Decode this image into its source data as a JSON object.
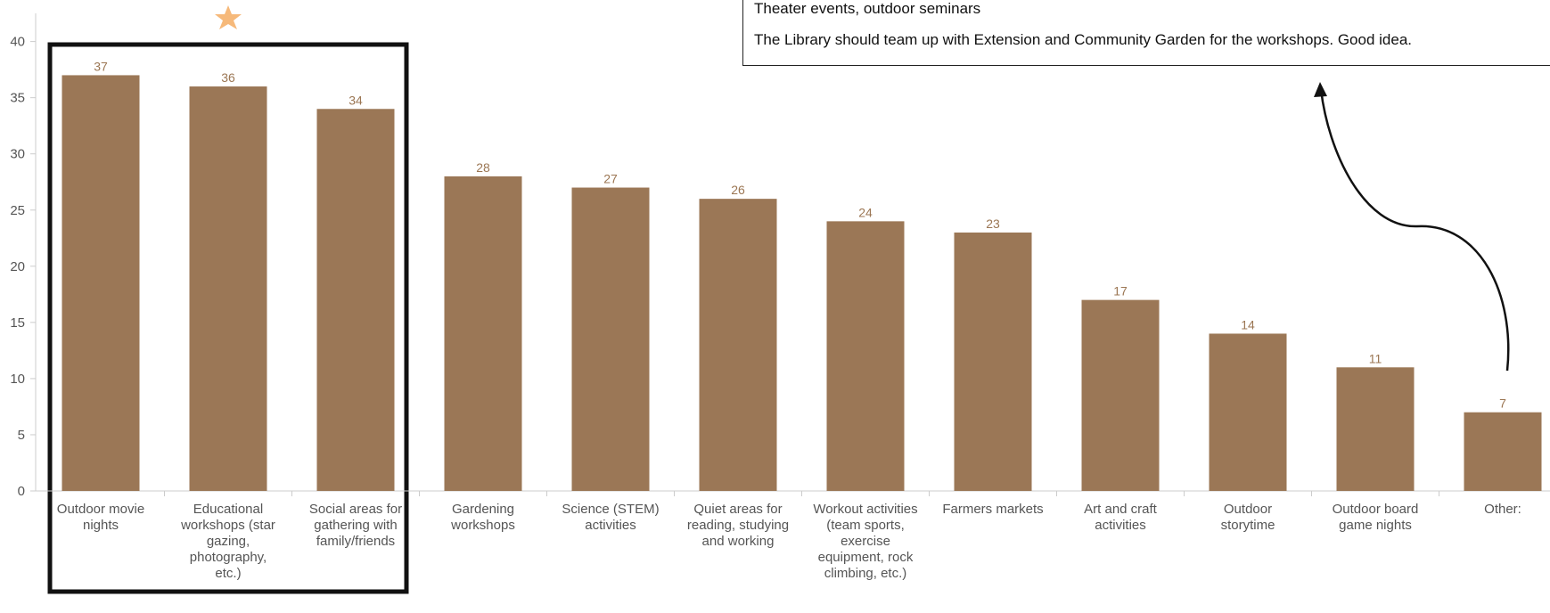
{
  "chart_data": {
    "type": "bar",
    "categories": [
      "Outdoor movie nights",
      "Educational workshops (star gazing, photography, etc.)",
      "Social areas for gathering with family/friends",
      "Gardening workshops",
      "Science (STEM) activities",
      "Quiet areas for reading, studying and working",
      "Workout activities (team sports, exercise equipment, rock climbing, etc.)",
      "Farmers markets",
      "Art and craft activities",
      "Outdoor storytime",
      "Outdoor board game nights",
      "Other:"
    ],
    "values": [
      37,
      36,
      34,
      28,
      27,
      26,
      24,
      23,
      17,
      14,
      11,
      7
    ],
    "color": "#9b7756",
    "ylim": [
      0,
      40
    ],
    "yticks": [
      0,
      5,
      10,
      15,
      20,
      25,
      30,
      35,
      40
    ],
    "grid": false
  },
  "comments": [
    "Theater events, outdoor seminars",
    "The Library should team up with Extension and Community Garden for the workshops. Good idea."
  ]
}
